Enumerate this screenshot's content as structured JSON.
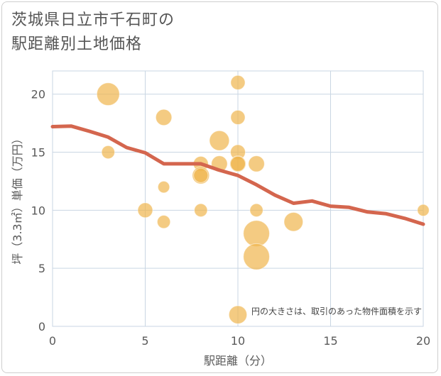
{
  "title_line1": "茨城県日立市千石町の",
  "title_line2": "駅距離別土地価格",
  "colors": {
    "bubble": "#f0b54d",
    "line": "#d4664e",
    "grid": "#c9d6e3"
  },
  "chart_data": {
    "type": "scatter",
    "xlabel": "駅距離（分）",
    "ylabel": "坪（3.3㎡）単価（万円）",
    "xlim": [
      0,
      20
    ],
    "ylim": [
      0,
      22
    ],
    "xticks": [
      "0",
      "5",
      "10",
      "15",
      "20"
    ],
    "yticks": [
      "0",
      "5",
      "10",
      "15",
      "20"
    ],
    "grid": true,
    "annotation": "円の大きさは、取引のあった物件面積を示す",
    "points": [
      {
        "x": 3,
        "y": 20,
        "size": 3
      },
      {
        "x": 3,
        "y": 15,
        "size": 1
      },
      {
        "x": 5,
        "y": 10,
        "size": 1.3
      },
      {
        "x": 6,
        "y": 18,
        "size": 1.5
      },
      {
        "x": 6,
        "y": 12,
        "size": 0.8
      },
      {
        "x": 6,
        "y": 9,
        "size": 1
      },
      {
        "x": 8,
        "y": 14,
        "size": 1.3
      },
      {
        "x": 8,
        "y": 13,
        "size": 1.7
      },
      {
        "x": 8,
        "y": 13,
        "size": 1.2
      },
      {
        "x": 8,
        "y": 10,
        "size": 1
      },
      {
        "x": 9,
        "y": 16,
        "size": 2.3
      },
      {
        "x": 9,
        "y": 14,
        "size": 1.5
      },
      {
        "x": 10,
        "y": 21,
        "size": 1.2
      },
      {
        "x": 10,
        "y": 18,
        "size": 1.2
      },
      {
        "x": 10,
        "y": 15,
        "size": 1.3
      },
      {
        "x": 10,
        "y": 14,
        "size": 1.5
      },
      {
        "x": 10,
        "y": 14,
        "size": 1.3
      },
      {
        "x": 10,
        "y": 1,
        "size": 1.9
      },
      {
        "x": 11,
        "y": 14,
        "size": 1.5
      },
      {
        "x": 11,
        "y": 10,
        "size": 1
      },
      {
        "x": 11,
        "y": 8,
        "size": 4
      },
      {
        "x": 11,
        "y": 6,
        "size": 4
      },
      {
        "x": 13,
        "y": 9,
        "size": 2.1
      },
      {
        "x": 20,
        "y": 10,
        "size": 0.8
      }
    ],
    "trend": {
      "x": [
        0,
        1,
        2,
        3,
        4,
        5,
        6,
        7,
        8,
        9,
        10,
        11,
        12,
        13,
        14,
        15,
        16,
        17,
        18,
        19,
        20
      ],
      "y": [
        17.2,
        17.25,
        16.8,
        16.3,
        15.4,
        14.95,
        14.0,
        14.0,
        14.0,
        13.45,
        13.0,
        12.2,
        11.3,
        10.6,
        10.8,
        10.35,
        10.25,
        9.85,
        9.7,
        9.3,
        8.8
      ]
    }
  }
}
